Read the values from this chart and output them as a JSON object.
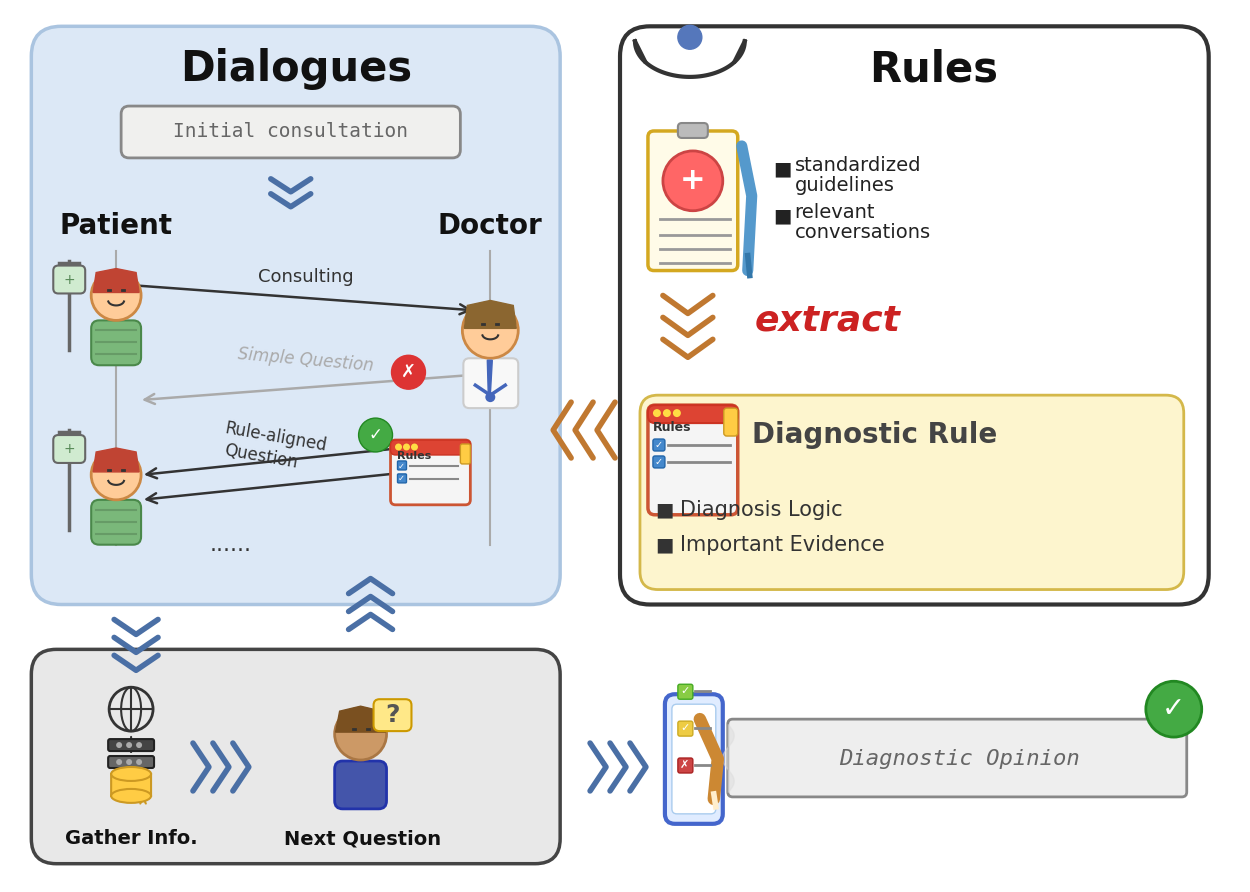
{
  "bg_color": "#ffffff",
  "dialogues_title": "Dialogues",
  "rules_title": "Rules",
  "initial_consultation": "Initial consultation",
  "patient_label": "Patient",
  "doctor_label": "Doctor",
  "consulting_label": "Consulting",
  "simple_question_label": "Simple Question",
  "rule_aligned_line1": "Rule-aligned",
  "rule_aligned_line2": "Question",
  "dots_label": "......",
  "extract_label": "extract",
  "diagnostic_rule_label": "Diagnostic Rule",
  "diagnosis_logic_label": "  Diagnosis Logic",
  "important_evidence_label": "  Important Evidence",
  "standardized_line1": "  standardized",
  "standardized_line2": "  guidelines",
  "relevant_line1": "  relevant",
  "relevant_line2": "  conversations",
  "gather_info_label": "Gather Info.",
  "next_question_label": "Next Question",
  "diagnostic_opinion_label": "Diagnostic Opinion",
  "rules_icon_label": "Rules",
  "diag_box_color": "#fdf5ce",
  "diag_box_ec": "#d4b84a",
  "left_box_color": "#dce8f6",
  "left_box_ec": "#aac4e0",
  "right_box_color": "#ffffff",
  "right_box_ec": "#333333",
  "bottom_box_color": "#e8e8e8",
  "bottom_box_ec": "#444444",
  "blue_chevron": "#4a6fa5",
  "orange_chevron": "#c07830"
}
